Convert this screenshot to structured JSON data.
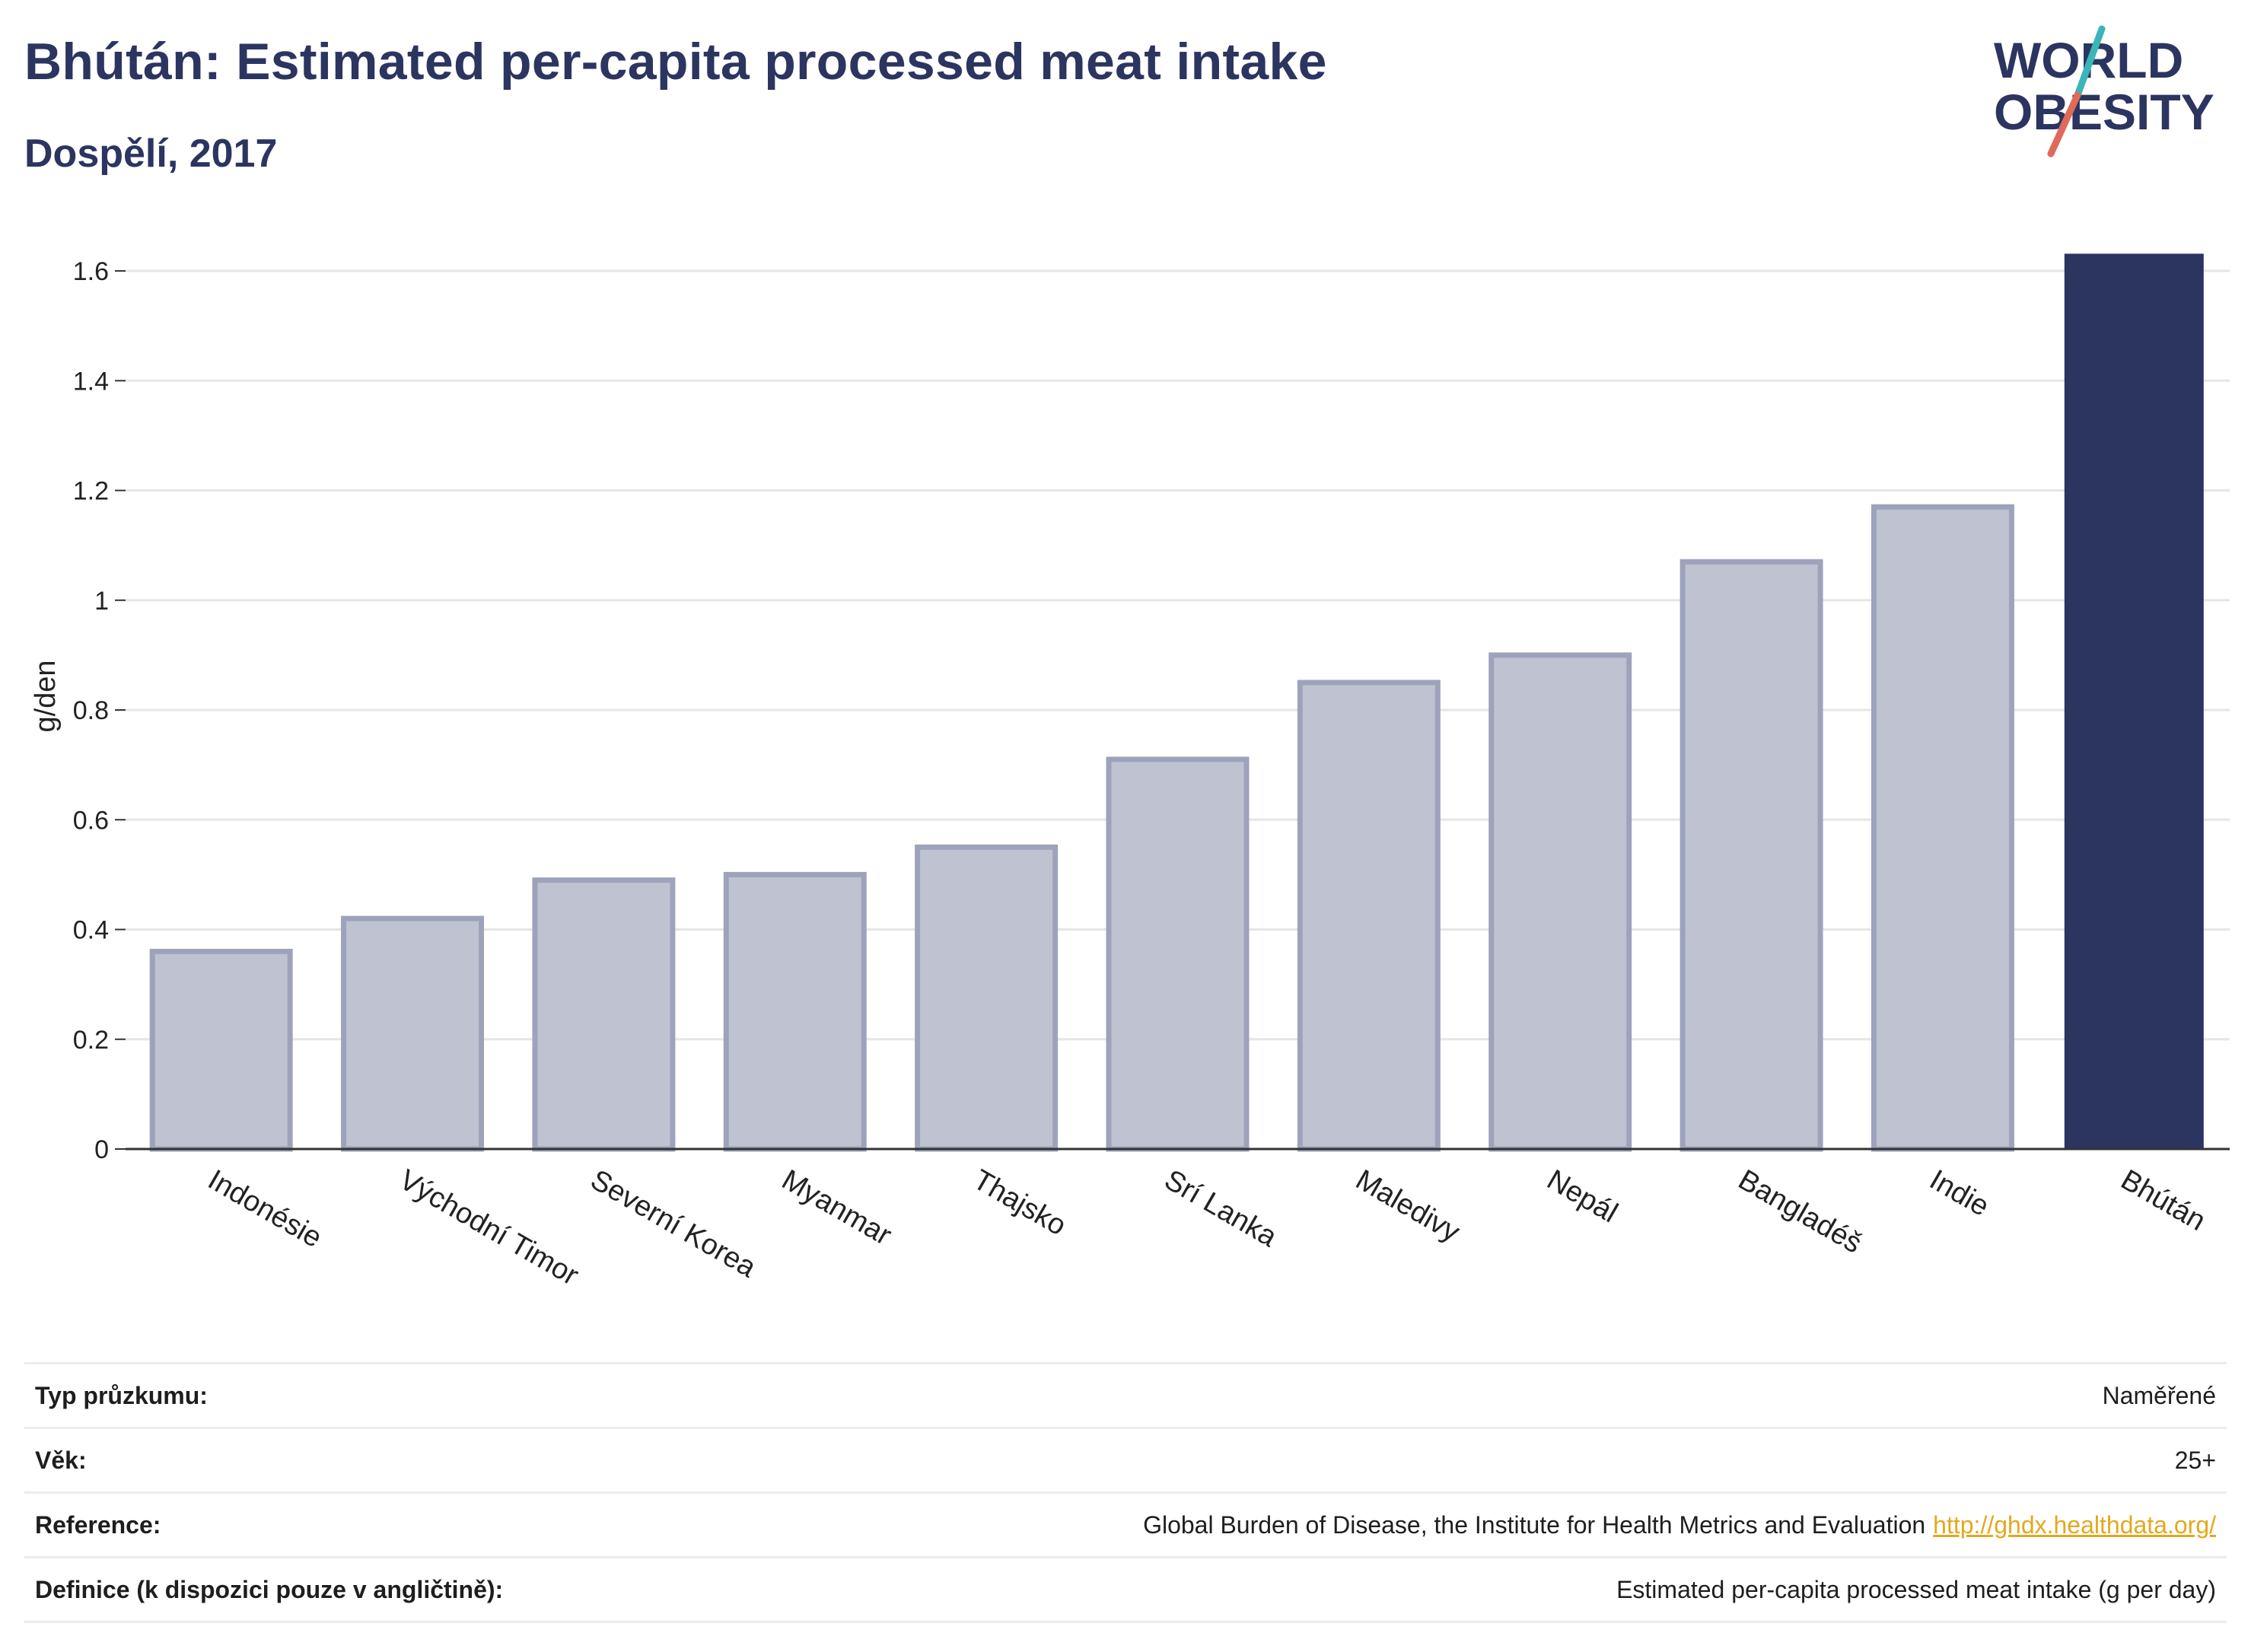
{
  "header": {
    "title": "Bhútán: Estimated per-capita processed meat intake",
    "subtitle": "Dospělí, 2017"
  },
  "logo": {
    "line1": "WORLD",
    "line2": "OBESITY",
    "accent_teal": "#3ab6b8",
    "accent_red": "#e06a5a",
    "text_color": "#2b3560"
  },
  "chart_data": {
    "type": "bar",
    "ylabel": "g/den",
    "xlabel": "",
    "ylim": [
      0,
      1.65
    ],
    "yticks": [
      "0",
      "0.2",
      "0.4",
      "0.6",
      "0.8",
      "1",
      "1.2",
      "1.4",
      "1.6"
    ],
    "ytick_values": [
      0,
      0.2,
      0.4,
      0.6,
      0.8,
      1.0,
      1.2,
      1.4,
      1.6
    ],
    "grid": true,
    "categories": [
      "Indonésie",
      "Východní Timor",
      "Severní Korea",
      "Myanmar",
      "Thajsko",
      "Srí Lanka",
      "Maledivy",
      "Nepál",
      "Bangladéš",
      "Indie",
      "Bhútán"
    ],
    "values": [
      0.36,
      0.42,
      0.49,
      0.5,
      0.55,
      0.71,
      0.85,
      0.9,
      1.07,
      1.17,
      1.63
    ],
    "highlight": "Bhútán",
    "colors": {
      "bar": "#bfc2d0",
      "bar_border": "#9ea3bb",
      "highlight": "#2b3560",
      "grid": "#e6e6e6",
      "axis": "#333333"
    }
  },
  "meta": [
    {
      "label": "Typ průzkumu:",
      "value": "Naměřené"
    },
    {
      "label": "Věk:",
      "value": "25+"
    },
    {
      "label": "Reference:",
      "value": "Global Burden of Disease, the Institute for Health Metrics and Evaluation",
      "link": "http://ghdx.healthdata.org/"
    },
    {
      "label": "Definice (k dispozici pouze v angličtině):",
      "value": "Estimated per-capita processed meat intake (g per day)"
    }
  ]
}
